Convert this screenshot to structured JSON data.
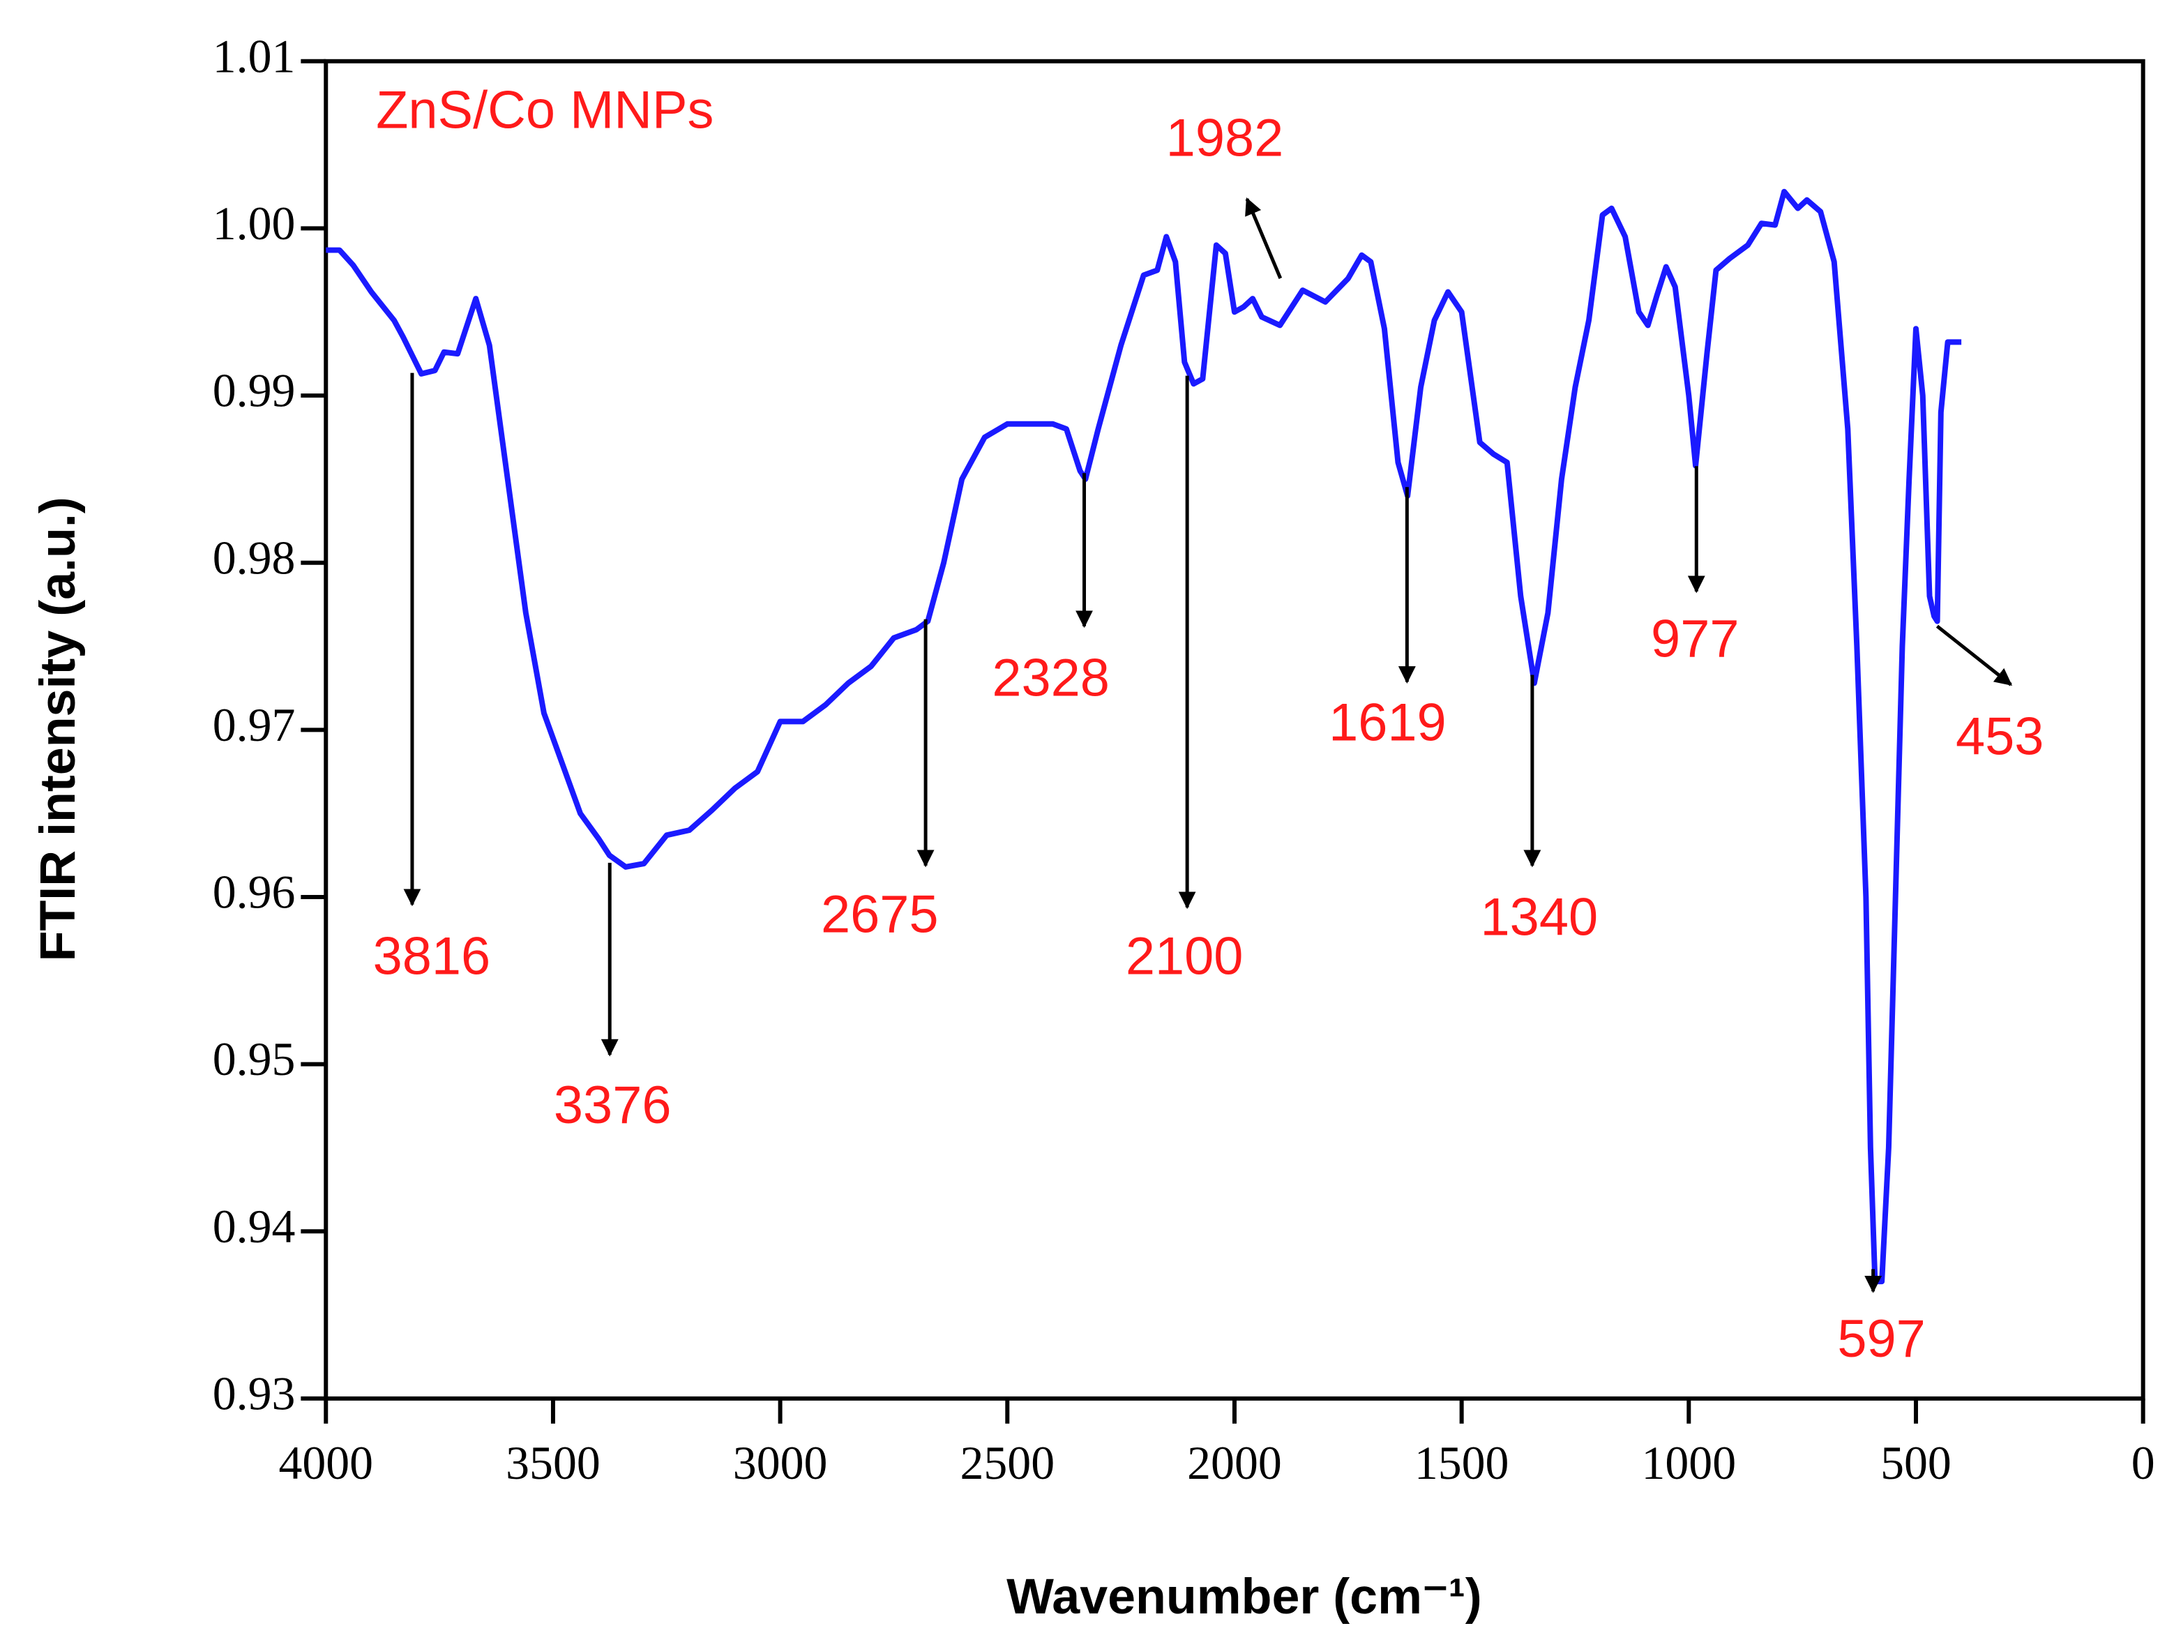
{
  "chart_data": {
    "type": "line",
    "xlabel": "Wavenumber (cm⁻¹)",
    "ylabel": "FTIR intensity (a.u.)",
    "color": "#1a1aff",
    "xlim": [
      4000,
      0
    ],
    "ylim": [
      0.93,
      1.01
    ],
    "xticks": [
      4000,
      3500,
      3000,
      2500,
      2000,
      1500,
      1000,
      500,
      0
    ],
    "yticks": [
      0.93,
      0.94,
      0.95,
      0.96,
      0.97,
      0.98,
      0.99,
      {
        "value": 1,
        "label": "1.00"
      },
      1.01
    ],
    "annotations": [
      "ZnS/Co MNPs",
      "3816",
      "3376",
      "2675",
      "2328",
      "2100",
      "1982",
      "1619",
      "1340",
      "977",
      "597",
      "453"
    ],
    "x": [
      4000,
      3970,
      3940,
      3900,
      3850,
      3830,
      3790,
      3760,
      3740,
      3710,
      3670,
      3640,
      3600,
      3560,
      3520,
      3480,
      3440,
      3400,
      3376,
      3340,
      3300,
      3250,
      3200,
      3150,
      3100,
      3050,
      3000,
      2950,
      2900,
      2850,
      2800,
      2750,
      2700,
      2675,
      2640,
      2600,
      2550,
      2500,
      2450,
      2400,
      2370,
      2340,
      2328,
      2300,
      2250,
      2200,
      2170,
      2150,
      2130,
      2110,
      2090,
      2070,
      2040,
      2020,
      2000,
      1980,
      1960,
      1940,
      1900,
      1850,
      1800,
      1750,
      1720,
      1700,
      1670,
      1640,
      1619,
      1590,
      1560,
      1530,
      1500,
      1460,
      1430,
      1400,
      1370,
      1340,
      1310,
      1280,
      1250,
      1220,
      1190,
      1170,
      1140,
      1110,
      1090,
      1070,
      1050,
      1030,
      1000,
      985,
      960,
      940,
      910,
      870,
      840,
      810,
      790,
      760,
      740,
      710,
      680,
      650,
      630,
      610,
      600,
      590,
      575,
      560,
      545,
      530,
      515,
      500,
      485,
      470,
      460,
      453,
      445,
      430,
      400
    ],
    "values": [
      0.9987,
      0.9987,
      0.9978,
      0.9962,
      0.9945,
      0.9935,
      0.9913,
      0.9915,
      0.9926,
      0.9925,
      0.9958,
      0.993,
      0.985,
      0.977,
      0.971,
      0.968,
      0.965,
      0.9635,
      0.9625,
      0.9618,
      0.962,
      0.9637,
      0.964,
      0.9652,
      0.9665,
      0.9675,
      0.9705,
      0.9705,
      0.9715,
      0.9728,
      0.9738,
      0.9755,
      0.976,
      0.9765,
      0.98,
      0.985,
      0.9875,
      0.9883,
      0.9883,
      0.9883,
      0.988,
      0.9855,
      0.985,
      0.988,
      0.993,
      0.9972,
      0.9975,
      0.9995,
      0.998,
      0.992,
      0.9907,
      0.991,
      0.999,
      0.9985,
      0.995,
      0.9953,
      0.9958,
      0.9947,
      0.9942,
      0.9963,
      0.9956,
      0.997,
      0.9984,
      0.998,
      0.994,
      0.986,
      0.984,
      0.9905,
      0.9945,
      0.9962,
      0.995,
      0.9872,
      0.9865,
      0.986,
      0.978,
      0.9728,
      0.977,
      0.985,
      0.9905,
      0.9945,
      1.0008,
      1.0012,
      0.9995,
      0.995,
      0.9942,
      0.996,
      0.9977,
      0.9965,
      0.99,
      0.9858,
      0.9925,
      0.9975,
      0.9982,
      0.999,
      1.0003,
      1.0002,
      1.0022,
      1.0012,
      1.0017,
      1.001,
      0.998,
      0.988,
      0.975,
      0.96,
      0.945,
      0.937,
      0.937,
      0.945,
      0.96,
      0.975,
      0.985,
      0.994,
      0.99,
      0.978,
      0.9768,
      0.9765,
      0.989,
      0.9932,
      0.9932
    ]
  }
}
